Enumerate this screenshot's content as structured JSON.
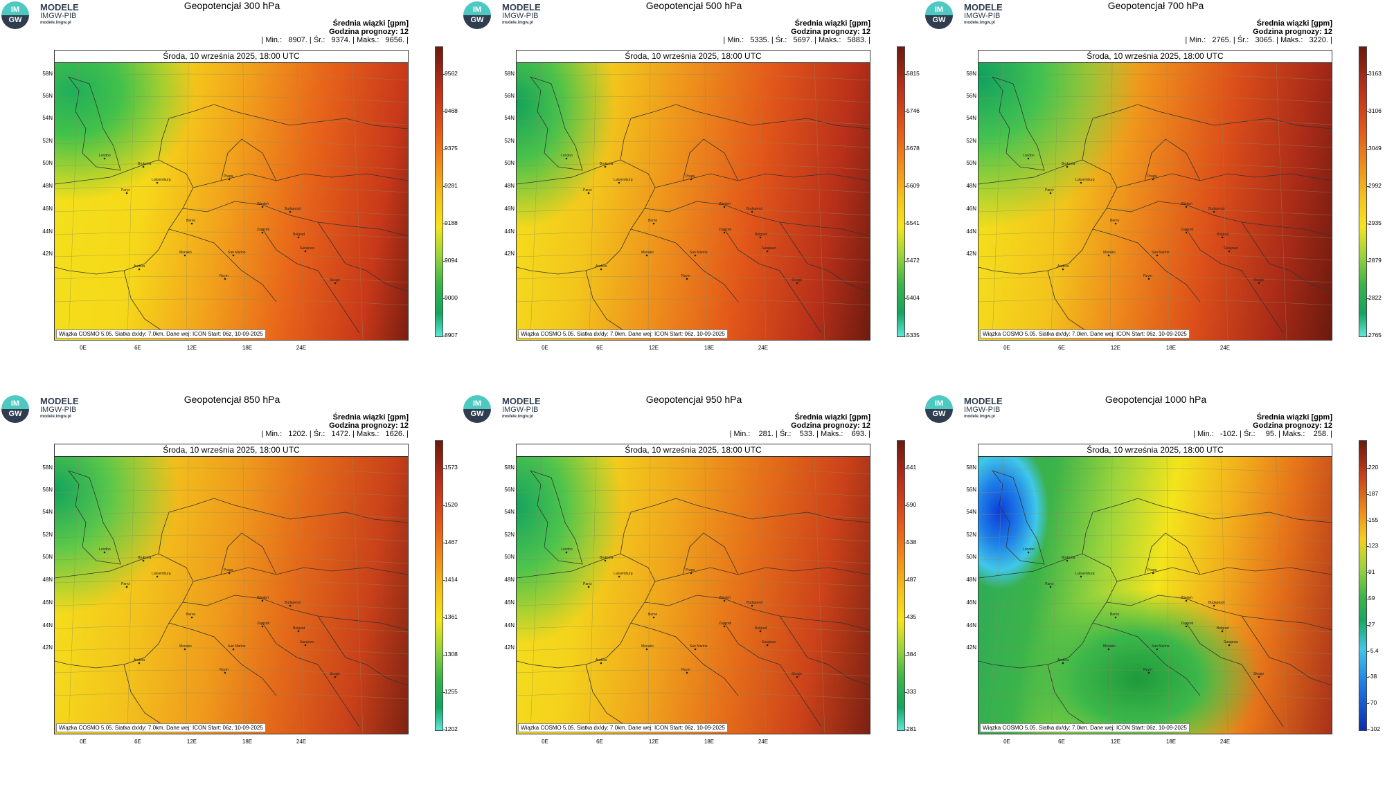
{
  "logo": {
    "circle_top": "IM",
    "circle_bottom": "GW",
    "line1": "MODELE",
    "line2": "IMGW-PIB",
    "line3": "modele.imgw.pl"
  },
  "panels": [
    {
      "title": "Geopotencjał 300 hPa",
      "info1": "Średnia wiązki [gpm]",
      "info2": "Godzina prognozy: 12",
      "info3": "| Min.:   8907. | Śr.:   9374. | Maks.:   9656. |",
      "date": "Środa, 10 września 2025, 18:00 UTC",
      "credit": "Wiązka COSMO 5.05. Siatka dx/dy: 7.0km. Dane wej: ICON Start: 06z, 10-09-2025",
      "colorbar": [
        "9562",
        "9468",
        "9375",
        "9281",
        "9188",
        "9094",
        "9000",
        "8907"
      ],
      "scheme": "warm"
    },
    {
      "title": "Geopotencjał 500 hPa",
      "info1": "Średnia wiązki [gpm]",
      "info2": "Godzina prognozy: 12",
      "info3": "| Min.:   5335. | Śr.:   5697. | Maks.:   5883. |",
      "date": "Środa, 10 września 2025, 18:00 UTC",
      "credit": "Wiązka COSMO 5.05. Siatka dx/dy: 7.0km. Dane wej: ICON Start: 06z, 10-09-2025",
      "colorbar": [
        "5815",
        "5746",
        "5678",
        "5609",
        "5541",
        "5472",
        "5404",
        "5335"
      ],
      "scheme": "warm"
    },
    {
      "title": "Geopotencjał 700 hPa",
      "info1": "Średnia wiązki [gpm]",
      "info2": "Godzina prognozy: 12",
      "info3": "| Min.:   2765. | Śr.:   3065. | Maks.:   3220. |",
      "date": "Środa, 10 września 2025, 18:00 UTC",
      "credit": "Wiązka COSMO 5.05. Siatka dx/dy: 7.0km. Dane wej: ICON Start: 06z, 10-09-2025",
      "colorbar": [
        "3163",
        "3106",
        "3049",
        "2992",
        "2935",
        "2879",
        "2822",
        "2765"
      ],
      "scheme": "warm"
    },
    {
      "title": "Geopotencjał 850 hPa",
      "info1": "Średnia wiązki [gpm]",
      "info2": "Godzina prognozy: 12",
      "info3": "| Min.:   1202. | Śr.:   1472. | Maks.:   1626. |",
      "date": "Środa, 10 września 2025, 18:00 UTC",
      "credit": "Wiązka COSMO 5.05. Siatka dx/dy: 7.0km. Dane wej: ICON Start: 06z, 10-09-2025",
      "colorbar": [
        "1573",
        "1520",
        "1467",
        "1414",
        "1361",
        "1308",
        "1255",
        "1202"
      ],
      "scheme": "warm"
    },
    {
      "title": "Geopotencjał 950 hPa",
      "info1": "Średnia wiązki [gpm]",
      "info2": "Godzina prognozy: 12",
      "info3": "| Min.:    281. | Śr.:    533. | Maks.:    693. |",
      "date": "Środa, 10 września 2025, 18:00 UTC",
      "credit": "Wiązka COSMO 5.05. Siatka dx/dy: 7.0km. Dane wej: ICON Start: 06z, 10-09-2025",
      "colorbar": [
        "641",
        "590",
        "538",
        "487",
        "435",
        "384",
        "333",
        "281"
      ],
      "scheme": "warm"
    },
    {
      "title": "Geopotencjał 1000 hPa",
      "info1": "Średnia wiązki [gpm]",
      "info2": "Godzina prognozy: 12",
      "info3": "| Min.:   -102. | Śr.:     95. | Maks.:    258. |",
      "date": "Środa, 10 września 2025, 18:00 UTC",
      "credit": "Wiązka COSMO 5.05. Siatka dx/dy: 7.0km. Dane wej: ICON Start: 06z, 10-09-2025",
      "colorbar": [
        "220",
        "187",
        "155",
        "123",
        "91",
        "59",
        "27",
        "-5.4",
        "-38",
        "-70",
        "-102"
      ],
      "scheme": "full"
    }
  ],
  "lat_labels": [
    "58N",
    "56N",
    "54N",
    "52N",
    "50N",
    "48N",
    "46N",
    "44N",
    "42N"
  ],
  "lon_labels": [
    "0E",
    "6E",
    "12E",
    "18E",
    "24E"
  ],
  "cities": [
    "London",
    "Bruksela",
    "Luksemburg",
    "Paryż",
    "Praga",
    "Wiedeń",
    "Budapeszt",
    "Berno",
    "Zagrzeb",
    "Belgrad",
    "Monako",
    "San Marino",
    "Sarajewo",
    "Andora",
    "Rzym",
    "Skopje"
  ]
}
